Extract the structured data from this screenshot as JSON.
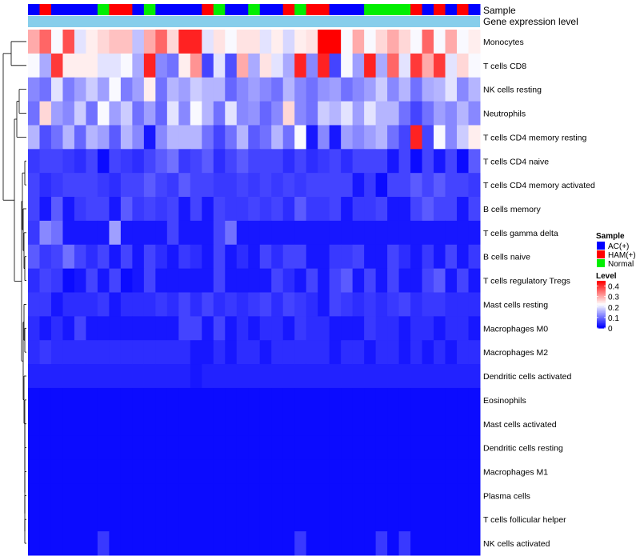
{
  "chart_data": {
    "type": "heatmap",
    "annotation_labels": {
      "sample": "Sample",
      "expression": "Gene expression level"
    },
    "sample_groups": [
      "AC(+)",
      "HAM(+)",
      "Normal"
    ],
    "samples": [
      0,
      1,
      0,
      0,
      0,
      0,
      2,
      1,
      1,
      0,
      2,
      0,
      0,
      0,
      0,
      1,
      2,
      0,
      0,
      2,
      0,
      0,
      1,
      2,
      1,
      1,
      0,
      0,
      0,
      2,
      2,
      2,
      2,
      1,
      0,
      1,
      0,
      1,
      0
    ],
    "rows": [
      "Monocytes",
      "T cells CD8",
      "NK cells resting",
      "Neutrophils",
      "T cells CD4 memory resting",
      "T cells CD4 naive",
      "T cells CD4 memory activated",
      "B cells memory",
      "T cells gamma delta",
      "B cells naive",
      "T cells regulatory  Tregs",
      "Mast cells resting",
      "Macrophages M0",
      "Macrophages M2",
      "Dendritic cells activated",
      "Eosinophils",
      "Mast cells activated",
      "Dendritic cells resting",
      "Macrophages M1",
      "Plasma cells",
      "T cells follicular helper",
      "NK cells activated"
    ],
    "values": [
      [
        0.3,
        0.36,
        0.22,
        0.38,
        0.2,
        0.24,
        0.26,
        0.28,
        0.28,
        0.17,
        0.3,
        0.36,
        0.26,
        0.42,
        0.42,
        0.2,
        0.25,
        0.22,
        0.25,
        0.25,
        0.2,
        0.24,
        0.19,
        0.24,
        0.25,
        0.45,
        0.45,
        0.22,
        0.3,
        0.22,
        0.26,
        0.3,
        0.26,
        0.22,
        0.36,
        0.22,
        0.3,
        0.22,
        0.24
      ],
      [
        0.22,
        0.15,
        0.4,
        0.24,
        0.24,
        0.24,
        0.2,
        0.2,
        0.22,
        0.15,
        0.42,
        0.12,
        0.1,
        0.24,
        0.32,
        0.06,
        0.2,
        0.07,
        0.3,
        0.15,
        0.25,
        0.2,
        0.15,
        0.42,
        0.12,
        0.42,
        0.06,
        0.22,
        0.14,
        0.42,
        0.15,
        0.36,
        0.2,
        0.4,
        0.3,
        0.4,
        0.2,
        0.26,
        0.22
      ],
      [
        0.12,
        0.1,
        0.2,
        0.11,
        0.14,
        0.18,
        0.14,
        0.22,
        0.11,
        0.14,
        0.24,
        0.1,
        0.16,
        0.14,
        0.18,
        0.16,
        0.16,
        0.09,
        0.12,
        0.14,
        0.12,
        0.1,
        0.16,
        0.12,
        0.1,
        0.13,
        0.14,
        0.1,
        0.12,
        0.14,
        0.18,
        0.12,
        0.16,
        0.1,
        0.15,
        0.16,
        0.2,
        0.12,
        0.16
      ],
      [
        0.1,
        0.26,
        0.14,
        0.12,
        0.18,
        0.1,
        0.22,
        0.14,
        0.18,
        0.1,
        0.14,
        0.09,
        0.2,
        0.12,
        0.22,
        0.16,
        0.1,
        0.2,
        0.12,
        0.13,
        0.09,
        0.12,
        0.26,
        0.12,
        0.1,
        0.18,
        0.16,
        0.2,
        0.14,
        0.2,
        0.16,
        0.16,
        0.1,
        0.06,
        0.1,
        0.14,
        0.12,
        0.16,
        0.12
      ],
      [
        0.16,
        0.07,
        0.1,
        0.16,
        0.09,
        0.16,
        0.14,
        0.08,
        0.16,
        0.12,
        0.02,
        0.12,
        0.16,
        0.16,
        0.16,
        0.1,
        0.06,
        0.1,
        0.16,
        0.08,
        0.1,
        0.16,
        0.1,
        0.22,
        0.02,
        0.12,
        0.02,
        0.14,
        0.12,
        0.14,
        0.16,
        0.1,
        0.06,
        0.42,
        0.06,
        0.22,
        0.12,
        0.18,
        0.24
      ],
      [
        0.05,
        0.06,
        0.06,
        0.05,
        0.04,
        0.06,
        0.01,
        0.06,
        0.05,
        0.04,
        0.06,
        0.08,
        0.1,
        0.05,
        0.06,
        0.08,
        0.04,
        0.06,
        0.08,
        0.06,
        0.06,
        0.06,
        0.04,
        0.06,
        0.04,
        0.05,
        0.06,
        0.04,
        0.06,
        0.06,
        0.06,
        0.02,
        0.06,
        0.01,
        0.06,
        0.02,
        0.06,
        0.01,
        0.08
      ],
      [
        0.06,
        0.04,
        0.05,
        0.06,
        0.06,
        0.06,
        0.05,
        0.04,
        0.06,
        0.06,
        0.08,
        0.06,
        0.05,
        0.08,
        0.06,
        0.06,
        0.05,
        0.05,
        0.06,
        0.05,
        0.06,
        0.05,
        0.06,
        0.05,
        0.06,
        0.06,
        0.06,
        0.06,
        0.02,
        0.05,
        0.01,
        0.06,
        0.06,
        0.08,
        0.06,
        0.08,
        0.06,
        0.06,
        0.05
      ],
      [
        0.06,
        0.02,
        0.08,
        0.02,
        0.05,
        0.06,
        0.06,
        0.02,
        0.08,
        0.05,
        0.06,
        0.05,
        0.06,
        0.02,
        0.06,
        0.02,
        0.06,
        0.05,
        0.05,
        0.06,
        0.05,
        0.06,
        0.04,
        0.08,
        0.05,
        0.05,
        0.06,
        0.02,
        0.05,
        0.05,
        0.06,
        0.02,
        0.02,
        0.06,
        0.08,
        0.06,
        0.06,
        0.02,
        0.06
      ],
      [
        0.05,
        0.12,
        0.1,
        0.02,
        0.02,
        0.02,
        0.02,
        0.14,
        0.02,
        0.02,
        0.02,
        0.02,
        0.06,
        0.02,
        0.02,
        0.02,
        0.06,
        0.1,
        0.02,
        0.02,
        0.02,
        0.02,
        0.02,
        0.02,
        0.02,
        0.02,
        0.02,
        0.02,
        0.02,
        0.02,
        0.02,
        0.02,
        0.02,
        0.02,
        0.02,
        0.02,
        0.02,
        0.02,
        0.02
      ],
      [
        0.08,
        0.05,
        0.06,
        0.1,
        0.06,
        0.04,
        0.06,
        0.02,
        0.06,
        0.02,
        0.06,
        0.04,
        0.02,
        0.05,
        0.04,
        0.02,
        0.06,
        0.02,
        0.04,
        0.02,
        0.06,
        0.04,
        0.06,
        0.06,
        0.02,
        0.02,
        0.05,
        0.05,
        0.06,
        0.02,
        0.02,
        0.06,
        0.04,
        0.02,
        0.05,
        0.02,
        0.06,
        0.02,
        0.05
      ],
      [
        0.04,
        0.06,
        0.05,
        0.01,
        0.02,
        0.06,
        0.02,
        0.06,
        0.01,
        0.02,
        0.06,
        0.02,
        0.02,
        0.02,
        0.02,
        0.02,
        0.06,
        0.02,
        0.02,
        0.02,
        0.02,
        0.06,
        0.04,
        0.02,
        0.06,
        0.02,
        0.06,
        0.08,
        0.02,
        0.06,
        0.02,
        0.06,
        0.02,
        0.02,
        0.06,
        0.08,
        0.02,
        0.06,
        0.02
      ],
      [
        0.05,
        0.05,
        0.02,
        0.04,
        0.04,
        0.04,
        0.05,
        0.02,
        0.04,
        0.04,
        0.04,
        0.05,
        0.04,
        0.06,
        0.04,
        0.06,
        0.04,
        0.05,
        0.04,
        0.05,
        0.06,
        0.04,
        0.06,
        0.05,
        0.04,
        0.02,
        0.06,
        0.05,
        0.04,
        0.05,
        0.04,
        0.05,
        0.06,
        0.04,
        0.05,
        0.05,
        0.04,
        0.04,
        0.04
      ],
      [
        0.04,
        0.02,
        0.04,
        0.02,
        0.06,
        0.02,
        0.02,
        0.02,
        0.02,
        0.02,
        0.02,
        0.02,
        0.02,
        0.06,
        0.06,
        0.02,
        0.06,
        0.02,
        0.04,
        0.02,
        0.04,
        0.04,
        0.02,
        0.05,
        0.04,
        0.04,
        0.02,
        0.02,
        0.02,
        0.05,
        0.04,
        0.04,
        0.02,
        0.04,
        0.04,
        0.02,
        0.04,
        0.04,
        0.02
      ],
      [
        0.04,
        0.05,
        0.04,
        0.04,
        0.04,
        0.04,
        0.04,
        0.04,
        0.04,
        0.04,
        0.04,
        0.04,
        0.04,
        0.04,
        0.02,
        0.02,
        0.04,
        0.02,
        0.04,
        0.04,
        0.02,
        0.04,
        0.04,
        0.04,
        0.04,
        0.04,
        0.02,
        0.04,
        0.04,
        0.02,
        0.04,
        0.04,
        0.02,
        0.04,
        0.02,
        0.04,
        0.02,
        0.04,
        0.04
      ],
      [
        0.03,
        0.03,
        0.03,
        0.03,
        0.03,
        0.03,
        0.03,
        0.03,
        0.03,
        0.03,
        0.03,
        0.03,
        0.03,
        0.03,
        0.02,
        0.03,
        0.03,
        0.03,
        0.03,
        0.03,
        0.03,
        0.03,
        0.03,
        0.03,
        0.03,
        0.03,
        0.03,
        0.03,
        0.03,
        0.03,
        0.03,
        0.03,
        0.03,
        0.03,
        0.03,
        0.03,
        0.03,
        0.03,
        0.03
      ],
      [
        0.01,
        0.01,
        0.01,
        0.01,
        0.01,
        0.01,
        0.01,
        0.01,
        0.01,
        0.01,
        0.01,
        0.01,
        0.01,
        0.01,
        0.01,
        0.01,
        0.01,
        0.01,
        0.01,
        0.01,
        0.01,
        0.01,
        0.01,
        0.01,
        0.01,
        0.01,
        0.01,
        0.01,
        0.01,
        0.01,
        0.01,
        0.01,
        0.01,
        0.01,
        0.01,
        0.01,
        0.01,
        0.01,
        0.01
      ],
      [
        0.01,
        0.01,
        0.01,
        0.01,
        0.01,
        0.01,
        0.01,
        0.01,
        0.01,
        0.01,
        0.01,
        0.01,
        0.01,
        0.01,
        0.01,
        0.01,
        0.01,
        0.01,
        0.01,
        0.01,
        0.01,
        0.01,
        0.01,
        0.01,
        0.01,
        0.01,
        0.01,
        0.01,
        0.01,
        0.01,
        0.01,
        0.01,
        0.01,
        0.01,
        0.01,
        0.01,
        0.01,
        0.01,
        0.01
      ],
      [
        0.01,
        0.01,
        0.01,
        0.01,
        0.01,
        0.01,
        0.01,
        0.01,
        0.01,
        0.01,
        0.01,
        0.01,
        0.01,
        0.01,
        0.01,
        0.01,
        0.01,
        0.01,
        0.01,
        0.01,
        0.01,
        0.01,
        0.01,
        0.01,
        0.01,
        0.01,
        0.01,
        0.01,
        0.01,
        0.01,
        0.01,
        0.01,
        0.01,
        0.01,
        0.01,
        0.01,
        0.01,
        0.01,
        0.01
      ],
      [
        0.01,
        0.01,
        0.01,
        0.01,
        0.01,
        0.01,
        0.01,
        0.01,
        0.01,
        0.01,
        0.01,
        0.01,
        0.01,
        0.01,
        0.01,
        0.01,
        0.01,
        0.01,
        0.01,
        0.01,
        0.01,
        0.01,
        0.01,
        0.01,
        0.01,
        0.01,
        0.01,
        0.01,
        0.01,
        0.01,
        0.01,
        0.01,
        0.01,
        0.01,
        0.01,
        0.01,
        0.01,
        0.01,
        0.01
      ],
      [
        0.01,
        0.01,
        0.01,
        0.01,
        0.01,
        0.01,
        0.01,
        0.01,
        0.01,
        0.01,
        0.01,
        0.01,
        0.01,
        0.01,
        0.01,
        0.01,
        0.01,
        0.01,
        0.01,
        0.01,
        0.01,
        0.01,
        0.01,
        0.01,
        0.01,
        0.01,
        0.01,
        0.01,
        0.01,
        0.01,
        0.01,
        0.01,
        0.01,
        0.01,
        0.01,
        0.01,
        0.01,
        0.01,
        0.01
      ],
      [
        0.01,
        0.01,
        0.01,
        0.01,
        0.01,
        0.01,
        0.01,
        0.01,
        0.01,
        0.01,
        0.01,
        0.01,
        0.01,
        0.01,
        0.01,
        0.01,
        0.01,
        0.01,
        0.01,
        0.01,
        0.01,
        0.01,
        0.01,
        0.01,
        0.01,
        0.01,
        0.01,
        0.01,
        0.01,
        0.01,
        0.01,
        0.01,
        0.01,
        0.01,
        0.01,
        0.01,
        0.01,
        0.01,
        0.01
      ],
      [
        0.01,
        0.01,
        0.01,
        0.01,
        0.01,
        0.01,
        0.05,
        0.01,
        0.01,
        0.01,
        0.01,
        0.01,
        0.01,
        0.01,
        0.01,
        0.01,
        0.01,
        0.01,
        0.01,
        0.01,
        0.01,
        0.01,
        0.01,
        0.05,
        0.01,
        0.01,
        0.01,
        0.01,
        0.01,
        0.01,
        0.05,
        0.01,
        0.05,
        0.01,
        0.01,
        0.01,
        0.01,
        0.01,
        0.01
      ]
    ],
    "value_range": [
      0,
      0.45
    ],
    "legend": {
      "sample_title": "Sample",
      "sample_entries": [
        "AC(+)",
        "HAM(+)",
        "Normal"
      ],
      "level_title": "Level",
      "level_ticks": [
        "0.4",
        "0.3",
        "0.2",
        "0.1",
        "0"
      ],
      "level_tick_values": [
        0.4,
        0.3,
        0.2,
        0.1,
        0
      ]
    },
    "colors": {
      "low": "#0000ff",
      "mid": "#ffffff",
      "high": "#ff0000",
      "AC(+)": "#0000ff",
      "HAM(+)": "#ff0000",
      "Normal": "#00ee00",
      "expression_bar": "#87ceeb"
    },
    "dendrogram": "row clustering tree (left side)",
    "placement": {
      "legend": "right"
    }
  }
}
